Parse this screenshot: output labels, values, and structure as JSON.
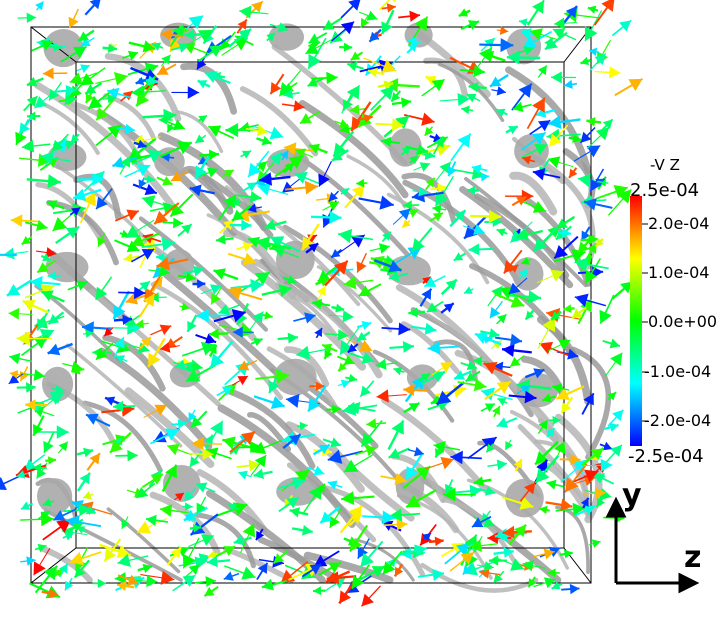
{
  "colorbar": {
    "title": "-V Z",
    "max_label": "2.5e-04",
    "min_label": "-2.5e-04",
    "tick_labels": [
      "2.0e-04",
      "1.0e-04",
      "0.0e+00",
      "-1.0e-04",
      "-2.0e-04"
    ],
    "colormap": [
      "#0000ff",
      "#00ffff",
      "#00ff00",
      "#ffff00",
      "#ff0000"
    ]
  },
  "axes": {
    "vertical_label": "y",
    "horizontal_label": "z"
  },
  "colors": {
    "background": "#ffffff",
    "structure_gray": "#9a9a9a",
    "box_outline": "#000000"
  }
}
